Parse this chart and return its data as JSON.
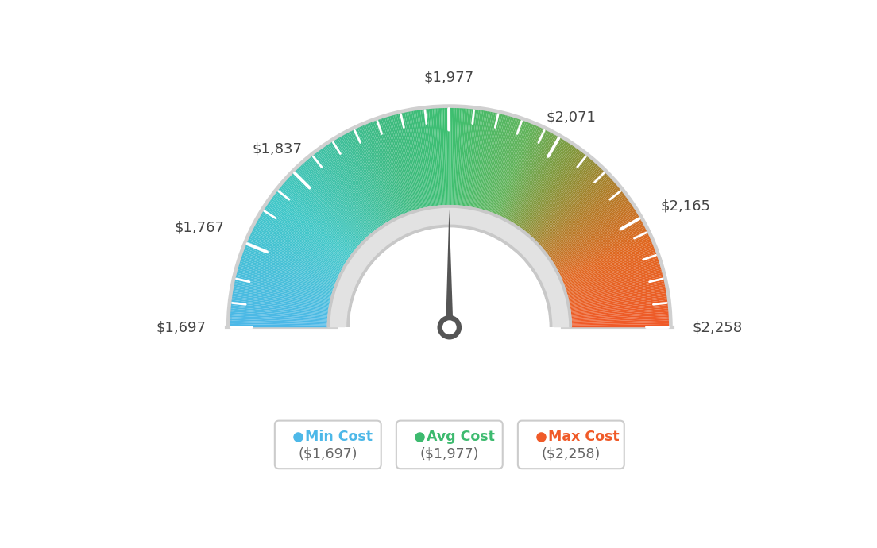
{
  "min_val": 1697,
  "max_val": 2258,
  "avg_val": 1977,
  "labels": [
    "$1,697",
    "$1,767",
    "$1,837",
    "$1,977",
    "$2,071",
    "$2,165",
    "$2,258"
  ],
  "label_values": [
    1697,
    1767,
    1837,
    1977,
    2071,
    2165,
    2258
  ],
  "legend_min_color": "#4db8e8",
  "legend_avg_color": "#3dba6f",
  "legend_max_color": "#f05a28",
  "background_color": "#ffffff",
  "color_stops": [
    [
      0.0,
      [
        0.3,
        0.72,
        0.91
      ]
    ],
    [
      0.2,
      [
        0.25,
        0.78,
        0.78
      ]
    ],
    [
      0.4,
      [
        0.24,
        0.73,
        0.5
      ]
    ],
    [
      0.5,
      [
        0.24,
        0.75,
        0.44
      ]
    ],
    [
      0.62,
      [
        0.38,
        0.7,
        0.35
      ]
    ],
    [
      0.7,
      [
        0.52,
        0.58,
        0.22
      ]
    ],
    [
      0.78,
      [
        0.7,
        0.48,
        0.15
      ]
    ],
    [
      0.87,
      [
        0.88,
        0.4,
        0.12
      ]
    ],
    [
      1.0,
      [
        0.94,
        0.35,
        0.16
      ]
    ]
  ]
}
